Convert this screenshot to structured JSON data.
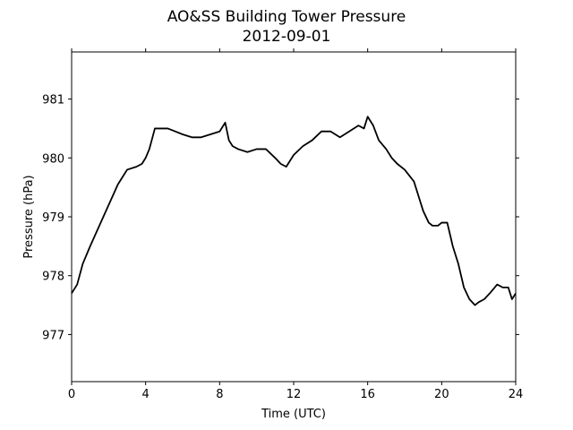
{
  "chart_data": {
    "type": "line",
    "title": "AO&SS Building Tower Pressure",
    "subtitle": "2012-09-01",
    "xlabel": "Time (UTC)",
    "ylabel": "Pressure (hPa)",
    "xlim": [
      0,
      24
    ],
    "ylim": [
      976.2,
      981.8
    ],
    "xticks": [
      0,
      4,
      8,
      12,
      16,
      20,
      24
    ],
    "yticks": [
      977,
      978,
      979,
      980,
      981
    ],
    "grid": false,
    "line_color": "#000000",
    "series": [
      {
        "x": [
          0,
          0.3,
          0.6,
          1.0,
          1.5,
          2.0,
          2.5,
          3.0,
          3.5,
          3.8,
          4.0,
          4.2,
          4.5,
          4.8,
          5.2,
          5.6,
          6.0,
          6.5,
          7.0,
          7.5,
          8.0,
          8.3,
          8.5,
          8.7,
          9.0,
          9.5,
          10.0,
          10.5,
          11.0,
          11.3,
          11.6,
          12.0,
          12.5,
          13.0,
          13.5,
          14.0,
          14.5,
          15.0,
          15.5,
          15.8,
          16.0,
          16.3,
          16.6,
          17.0,
          17.3,
          17.6,
          18.0,
          18.5,
          18.8,
          19.0,
          19.3,
          19.5,
          19.8,
          20.0,
          20.3,
          20.6,
          20.9,
          21.2,
          21.5,
          21.8,
          22.0,
          22.3,
          22.6,
          23.0,
          23.3,
          23.6,
          23.8,
          24.0
        ],
        "values": [
          977.7,
          977.85,
          978.2,
          978.5,
          978.85,
          979.2,
          979.55,
          979.8,
          979.85,
          979.9,
          980.0,
          980.15,
          980.5,
          980.5,
          980.5,
          980.45,
          980.4,
          980.35,
          980.35,
          980.4,
          980.45,
          980.6,
          980.3,
          980.2,
          980.15,
          980.1,
          980.15,
          980.15,
          980.0,
          979.9,
          979.85,
          980.05,
          980.2,
          980.3,
          980.45,
          980.45,
          980.35,
          980.45,
          980.55,
          980.5,
          980.7,
          980.55,
          980.3,
          980.15,
          980.0,
          979.9,
          979.8,
          979.6,
          979.3,
          979.1,
          978.9,
          978.85,
          978.85,
          978.9,
          978.9,
          978.5,
          978.2,
          977.8,
          977.6,
          977.5,
          977.55,
          977.6,
          977.7,
          977.85,
          977.8,
          977.8,
          977.6,
          977.7
        ]
      }
    ]
  }
}
